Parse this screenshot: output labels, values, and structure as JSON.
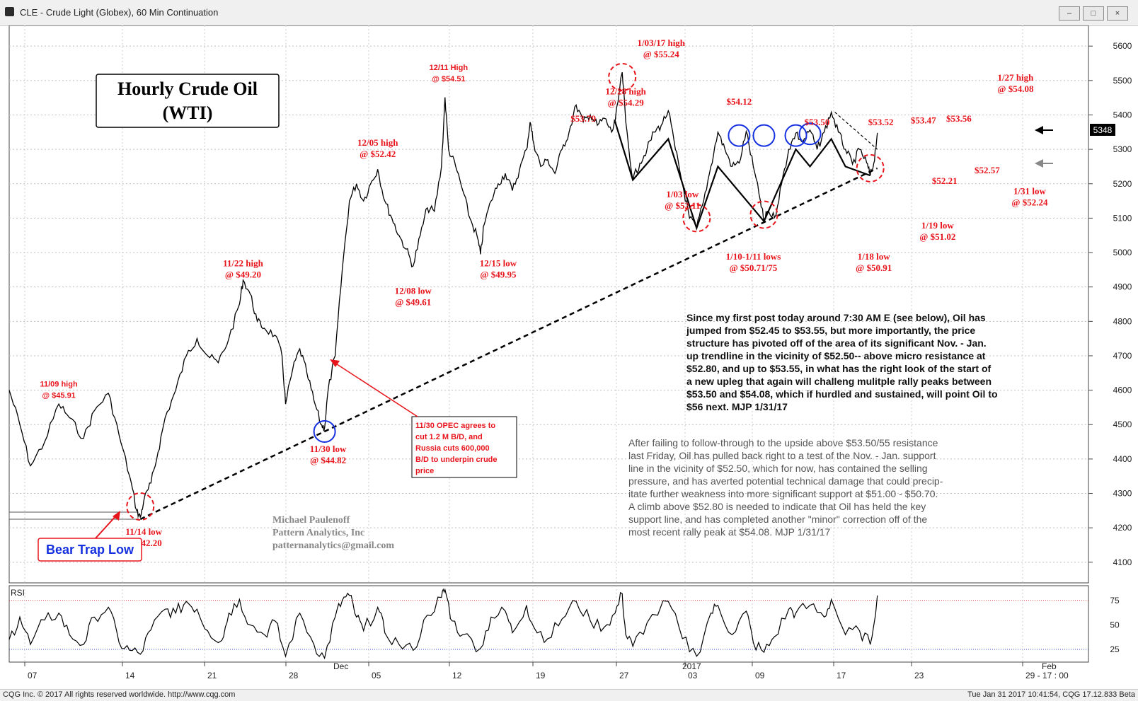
{
  "window": {
    "title": "CLE - Crude Light (Globex), 60 Min Continuation",
    "btn_min": "–",
    "btn_max": "□",
    "btn_close": "×"
  },
  "status": {
    "left": "CQG Inc. © 2017 All rights reserved worldwide. http://www.cqg.com",
    "right": "Tue Jan 31 2017 10:41:54, CQG 17.12.833 Beta"
  },
  "chart_title": {
    "line1": "Hourly Crude Oil",
    "line2": "(WTI)"
  },
  "price_badge": "5348",
  "rsi_label": "RSI",
  "credits": [
    "Michael Paulenoff",
    "Pattern Analytics, Inc",
    "patternanalytics@gmail.com"
  ],
  "opec_note": [
    "11/30 OPEC agrees to",
    "cut 1.2 M B/D, and",
    "Russia cuts 600,000",
    "B/D to underpin crude",
    "price"
  ],
  "bear_trap": "Bear Trap Low",
  "commentary1": [
    "Since my first post today around 7:30 AM E (see below), Oil has",
    "jumped from $52.45 to $53.55, but more importantly, the price",
    "structure has pivoted off of the area of its significant Nov. - Jan.",
    "up trendline in the vicinity of $52.50-- above micro resistance at",
    "$52.80, and up to $53.55, in what has the right look of the start of",
    "a new upleg that again will challeng mulitple rally peaks between",
    "$53.50 and $54.08, which if hurdled and sustained, will point Oil to",
    "$56 next. MJP 1/31/17"
  ],
  "commentary2": [
    "After failing to follow-through to the upside above $53.50/55 resistance",
    "last Friday, Oil has pulled back right to a test of the Nov. - Jan. support",
    "line in the vicinity of $52.50, which for now, has contained the selling",
    "pressure, and has averted potential technical damage that could precip-",
    "itate further weakness into more significant support at $51.00 - $50.70.",
    "   A climb above $52.80 is needed to indicate that Oil has held the key",
    "support line, and has completed another \"minor\" correction off of the",
    "most recent rally peak at $54.08.  MJP 1/31/17"
  ],
  "chart_data": {
    "type": "line",
    "price_axis": {
      "ylim": [
        4040,
        5660
      ],
      "ticks": [
        4100,
        4200,
        4300,
        4400,
        4500,
        4600,
        4700,
        4800,
        4900,
        5000,
        5100,
        5200,
        5300,
        5400,
        5500,
        5600
      ]
    },
    "rsi_axis": {
      "ylim": [
        12,
        90
      ],
      "ticks": [
        25,
        50,
        75
      ],
      "ref_lines": [
        75,
        25
      ]
    },
    "x_ticks": [
      "07",
      "14",
      "21",
      "28",
      "05",
      "12",
      "19",
      "27",
      "03",
      "09",
      "17",
      "23",
      "29 - 17 : 00"
    ],
    "x_major_labels": [
      "Dec",
      "2017",
      "Feb"
    ],
    "price_points": [
      [
        0,
        4600
      ],
      [
        3,
        4500
      ],
      [
        6,
        4380
      ],
      [
        10,
        4450
      ],
      [
        14,
        4560
      ],
      [
        17,
        4520
      ],
      [
        21,
        4460
      ],
      [
        24,
        4540
      ],
      [
        28,
        4591
      ],
      [
        31,
        4470
      ],
      [
        34,
        4350
      ],
      [
        36,
        4250
      ],
      [
        37,
        4230
      ],
      [
        38,
        4280
      ],
      [
        40,
        4330
      ],
      [
        42,
        4420
      ],
      [
        44,
        4520
      ],
      [
        47,
        4600
      ],
      [
        50,
        4700
      ],
      [
        53,
        4750
      ],
      [
        56,
        4700
      ],
      [
        59,
        4680
      ],
      [
        62,
        4750
      ],
      [
        65,
        4850
      ],
      [
        66,
        4920
      ],
      [
        68,
        4880
      ],
      [
        70,
        4800
      ],
      [
        72,
        4780
      ],
      [
        75,
        4760
      ],
      [
        77,
        4700
      ],
      [
        78,
        4560
      ],
      [
        80,
        4660
      ],
      [
        82,
        4720
      ],
      [
        84,
        4650
      ],
      [
        86,
        4570
      ],
      [
        88,
        4500
      ],
      [
        89,
        4490
      ],
      [
        90,
        4600
      ],
      [
        92,
        4700
      ],
      [
        94,
        4950
      ],
      [
        96,
        5150
      ],
      [
        98,
        5200
      ],
      [
        100,
        5150
      ],
      [
        102,
        5200
      ],
      [
        104,
        5242
      ],
      [
        106,
        5150
      ],
      [
        108,
        5100
      ],
      [
        110,
        5050
      ],
      [
        112,
        5010
      ],
      [
        114,
        4961
      ],
      [
        116,
        5050
      ],
      [
        118,
        5130
      ],
      [
        120,
        5120
      ],
      [
        122,
        5250
      ],
      [
        123,
        5451
      ],
      [
        124,
        5300
      ],
      [
        126,
        5250
      ],
      [
        128,
        5180
      ],
      [
        130,
        5100
      ],
      [
        132,
        5050
      ],
      [
        133,
        4995
      ],
      [
        134,
        5080
      ],
      [
        136,
        5150
      ],
      [
        138,
        5200
      ],
      [
        140,
        5230
      ],
      [
        142,
        5180
      ],
      [
        144,
        5240
      ],
      [
        146,
        5300
      ],
      [
        147,
        5379
      ],
      [
        148,
        5320
      ],
      [
        150,
        5250
      ],
      [
        152,
        5270
      ],
      [
        154,
        5230
      ],
      [
        156,
        5300
      ],
      [
        158,
        5350
      ],
      [
        160,
        5429
      ],
      [
        162,
        5380
      ],
      [
        164,
        5400
      ],
      [
        166,
        5370
      ],
      [
        168,
        5390
      ],
      [
        170,
        5350
      ],
      [
        171,
        5380
      ],
      [
        173,
        5524
      ],
      [
        174,
        5380
      ],
      [
        176,
        5211
      ],
      [
        178,
        5260
      ],
      [
        180,
        5300
      ],
      [
        182,
        5350
      ],
      [
        184,
        5370
      ],
      [
        186,
        5412
      ],
      [
        188,
        5300
      ],
      [
        190,
        5200
      ],
      [
        192,
        5100
      ],
      [
        194,
        5071
      ],
      [
        196,
        5150
      ],
      [
        198,
        5250
      ],
      [
        200,
        5350
      ],
      [
        202,
        5300
      ],
      [
        204,
        5250
      ],
      [
        206,
        5260
      ],
      [
        208,
        5352
      ],
      [
        210,
        5250
      ],
      [
        212,
        5150
      ],
      [
        213,
        5091
      ],
      [
        214,
        5120
      ],
      [
        216,
        5102
      ],
      [
        218,
        5200
      ],
      [
        220,
        5300
      ],
      [
        222,
        5347
      ],
      [
        224,
        5320
      ],
      [
        226,
        5356
      ],
      [
        228,
        5300
      ],
      [
        230,
        5350
      ],
      [
        232,
        5408
      ],
      [
        234,
        5350
      ],
      [
        236,
        5300
      ],
      [
        238,
        5257
      ],
      [
        240,
        5300
      ],
      [
        242,
        5260
      ],
      [
        243,
        5224
      ],
      [
        244,
        5260
      ],
      [
        245,
        5348
      ]
    ],
    "rsi_points": [
      [
        0,
        35
      ],
      [
        3,
        58
      ],
      [
        6,
        30
      ],
      [
        10,
        55
      ],
      [
        14,
        62
      ],
      [
        17,
        40
      ],
      [
        21,
        30
      ],
      [
        24,
        58
      ],
      [
        28,
        68
      ],
      [
        31,
        32
      ],
      [
        34,
        24
      ],
      [
        37,
        20
      ],
      [
        40,
        45
      ],
      [
        44,
        66
      ],
      [
        47,
        62
      ],
      [
        50,
        74
      ],
      [
        53,
        66
      ],
      [
        56,
        44
      ],
      [
        60,
        34
      ],
      [
        62,
        62
      ],
      [
        65,
        76
      ],
      [
        68,
        50
      ],
      [
        72,
        40
      ],
      [
        75,
        54
      ],
      [
        78,
        18
      ],
      [
        82,
        62
      ],
      [
        86,
        30
      ],
      [
        89,
        16
      ],
      [
        92,
        58
      ],
      [
        94,
        75
      ],
      [
        96,
        80
      ],
      [
        98,
        58
      ],
      [
        100,
        44
      ],
      [
        104,
        68
      ],
      [
        106,
        42
      ],
      [
        110,
        30
      ],
      [
        114,
        24
      ],
      [
        118,
        60
      ],
      [
        122,
        78
      ],
      [
        123,
        86
      ],
      [
        125,
        54
      ],
      [
        128,
        40
      ],
      [
        133,
        26
      ],
      [
        136,
        58
      ],
      [
        140,
        64
      ],
      [
        142,
        42
      ],
      [
        146,
        70
      ],
      [
        148,
        48
      ],
      [
        152,
        36
      ],
      [
        156,
        56
      ],
      [
        160,
        74
      ],
      [
        164,
        54
      ],
      [
        168,
        48
      ],
      [
        171,
        62
      ],
      [
        173,
        82
      ],
      [
        174,
        40
      ],
      [
        176,
        28
      ],
      [
        180,
        52
      ],
      [
        186,
        74
      ],
      [
        190,
        36
      ],
      [
        194,
        18
      ],
      [
        198,
        62
      ],
      [
        200,
        70
      ],
      [
        204,
        40
      ],
      [
        208,
        64
      ],
      [
        210,
        32
      ],
      [
        213,
        22
      ],
      [
        216,
        38
      ],
      [
        220,
        66
      ],
      [
        222,
        62
      ],
      [
        226,
        70
      ],
      [
        230,
        58
      ],
      [
        232,
        76
      ],
      [
        236,
        40
      ],
      [
        240,
        44
      ],
      [
        243,
        30
      ],
      [
        245,
        80
      ]
    ],
    "support_line": {
      "from": [
        37,
        4225
      ],
      "to": [
        245,
        5245
      ]
    },
    "zigzag": [
      [
        171,
        5380
      ],
      [
        176,
        5211
      ],
      [
        186,
        5330
      ],
      [
        194,
        5071
      ],
      [
        200,
        5250
      ],
      [
        213,
        5091
      ],
      [
        222,
        5300
      ],
      [
        226,
        5250
      ],
      [
        232,
        5330
      ],
      [
        236,
        5250
      ],
      [
        243,
        5224
      ]
    ],
    "zigzag_dashed": {
      "from": [
        233,
        5408
      ],
      "to": [
        245,
        5300
      ]
    },
    "annotations": [
      {
        "t": [
          "11/09 high",
          "@ $45.91"
        ],
        "at": [
          14,
          4610
        ],
        "small": true
      },
      {
        "t": [
          "11/14 low",
          "@ $42.20"
        ],
        "at": [
          38,
          4180
        ]
      },
      {
        "t": [
          "11/22 high",
          "@ $49.20"
        ],
        "at": [
          66,
          4960
        ]
      },
      {
        "t": [
          "11/30 low",
          "@ $44.82"
        ],
        "at": [
          90,
          4420
        ]
      },
      {
        "t": [
          "12/05 high",
          "@ $52.42"
        ],
        "at": [
          104,
          5310
        ]
      },
      {
        "t": [
          "12/08 low",
          "@ $49.61"
        ],
        "at": [
          114,
          4880
        ]
      },
      {
        "t": [
          "12/11 High",
          "@ $54.51"
        ],
        "at": [
          124,
          5530
        ],
        "small": true
      },
      {
        "t": [
          "12/15 low",
          "@ $49.95"
        ],
        "at": [
          138,
          4960
        ]
      },
      {
        "t": [
          "$53.79"
        ],
        "at": [
          162,
          5380
        ]
      },
      {
        "t": [
          "12/28 high",
          "@ $54.29"
        ],
        "at": [
          174,
          5460
        ]
      },
      {
        "t": [
          "1/03/17 high",
          "@ $55.24"
        ],
        "at": [
          184,
          5600
        ]
      },
      {
        "t": [
          "$54.12"
        ],
        "at": [
          206,
          5430
        ]
      },
      {
        "t": [
          "1/03 low",
          "@ $52.11"
        ],
        "at": [
          190,
          5160
        ]
      },
      {
        "t": [
          "1/10-1/11 lows",
          "@ $50.71/75"
        ],
        "at": [
          210,
          4980
        ]
      },
      {
        "t": [
          "$53.50"
        ],
        "at": [
          228,
          5370
        ]
      },
      {
        "t": [
          "$53.52"
        ],
        "at": [
          246,
          5370
        ]
      },
      {
        "t": [
          "$53.47"
        ],
        "at": [
          258,
          5375
        ]
      },
      {
        "t": [
          "$53.56"
        ],
        "at": [
          268,
          5380
        ]
      },
      {
        "t": [
          "$52.21"
        ],
        "at": [
          264,
          5200
        ]
      },
      {
        "t": [
          "1/18 low",
          "@ $50.91"
        ],
        "at": [
          244,
          4980
        ]
      },
      {
        "t": [
          "1/19 low",
          "@ $51.02"
        ],
        "at": [
          262,
          5070
        ]
      },
      {
        "t": [
          "$52.57"
        ],
        "at": [
          276,
          5230
        ]
      },
      {
        "t": [
          "1/27 high",
          "@ $54.08"
        ],
        "at": [
          284,
          5500
        ]
      },
      {
        "t": [
          "1/31 low",
          "@ $52.24"
        ],
        "at": [
          288,
          5170
        ]
      }
    ],
    "circles": [
      {
        "at": [
          37,
          4262
        ],
        "color": "#e8141b",
        "dashed": true
      },
      {
        "at": [
          89,
          4480
        ],
        "color": "#1530e0",
        "dashed": false
      },
      {
        "at": [
          173,
          5510
        ],
        "color": "#e8141b",
        "dashed": true
      },
      {
        "at": [
          194,
          5100
        ],
        "color": "#e8141b",
        "dashed": true
      },
      {
        "at": [
          206,
          5340
        ],
        "color": "#1530e0",
        "dashed": false
      },
      {
        "at": [
          213,
          5340
        ],
        "color": "#1530e0",
        "dashed": false
      },
      {
        "at": [
          222,
          5340
        ],
        "color": "#1530e0",
        "dashed": false
      },
      {
        "at": [
          226,
          5345
        ],
        "color": "#1530e0",
        "dashed": false
      },
      {
        "at": [
          213,
          5110
        ],
        "color": "#e8141b",
        "dashed": true
      },
      {
        "at": [
          243,
          5245
        ],
        "color": "#e8141b",
        "dashed": true
      }
    ],
    "colors": {
      "price": "#000000",
      "annotation": "#e8141b",
      "support": "#000000",
      "rsi_upper": "#d04040",
      "rsi_lower": "#3050c0"
    }
  }
}
